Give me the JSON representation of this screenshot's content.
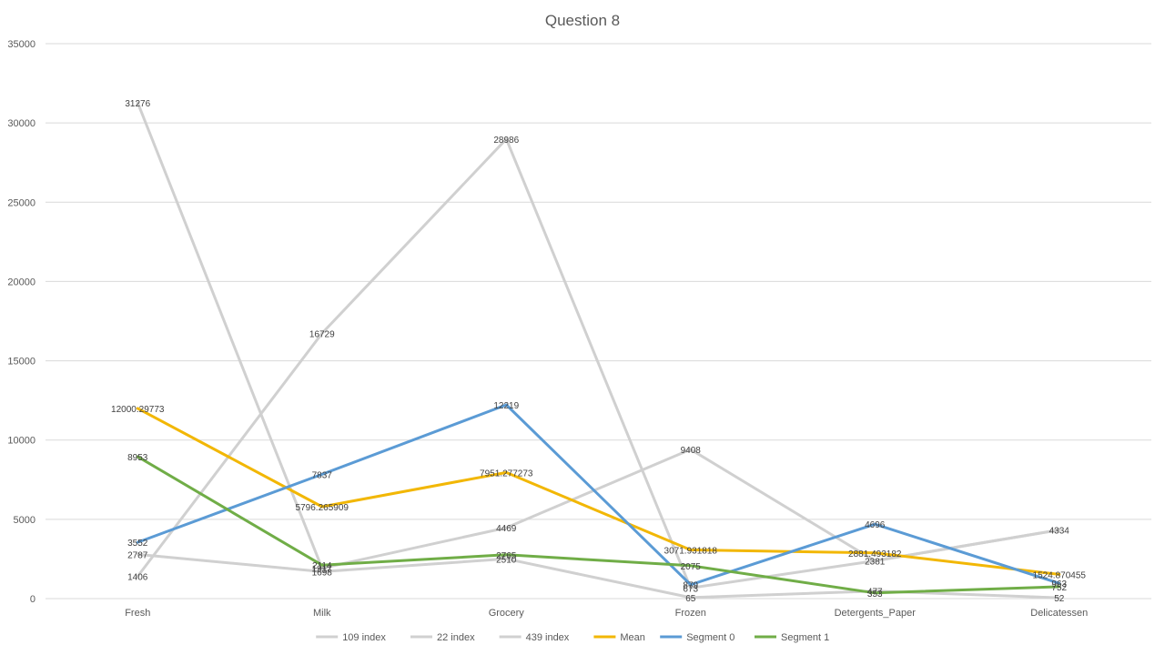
{
  "chart_data": {
    "type": "line",
    "title": "Question 8",
    "xlabel": "",
    "ylabel": "",
    "ylim": [
      0,
      35000
    ],
    "yticks": [
      0,
      5000,
      10000,
      15000,
      20000,
      25000,
      30000,
      35000
    ],
    "grid": true,
    "legend": "bottom",
    "categories": [
      "Fresh",
      "Milk",
      "Grocery",
      "Frozen",
      "Detergents_Paper",
      "Delicatessen"
    ],
    "series": [
      {
        "name": "109 index",
        "color": "#d0d0d0",
        "values": [
          1406,
          16729,
          28986,
          673,
          2381,
          4334
        ],
        "labels": [
          "1406",
          "16729",
          "28986",
          "673",
          "2381",
          "4334"
        ]
      },
      {
        "name": "22 index",
        "color": "#d0d0d0",
        "values": [
          31276,
          1917,
          4469,
          9408,
          2381,
          4334
        ],
        "labels": [
          "31276",
          "1917",
          "4469",
          "9408",
          "",
          ""
        ]
      },
      {
        "name": "439 index",
        "color": "#d0d0d0",
        "values": [
          2787,
          1698,
          2510,
          65,
          477,
          52
        ],
        "labels": [
          "2787",
          "1698",
          "2510",
          "65",
          "477",
          "52"
        ]
      },
      {
        "name": "Mean",
        "color": "#f2b705",
        "values": [
          12000.29773,
          5796.265909,
          7951.277273,
          3071.931818,
          2881.493182,
          1524.870455
        ],
        "labels": [
          "12000.29773",
          "5796.265909",
          "7951.277273",
          "3071.931818",
          "2881.493182",
          "1524.870455"
        ]
      },
      {
        "name": "Segment 0",
        "color": "#5b9bd5",
        "values": [
          3552,
          7837,
          12219,
          879,
          4696,
          963
        ],
        "labels": [
          "3552",
          "7837",
          "12219",
          "879",
          "4696",
          "963"
        ]
      },
      {
        "name": "Segment 1",
        "color": "#70ad47",
        "values": [
          8953,
          2114,
          2765,
          2075,
          353,
          752
        ],
        "labels": [
          "8953",
          "2114",
          "2765",
          "2075",
          "353",
          "752"
        ]
      }
    ]
  }
}
